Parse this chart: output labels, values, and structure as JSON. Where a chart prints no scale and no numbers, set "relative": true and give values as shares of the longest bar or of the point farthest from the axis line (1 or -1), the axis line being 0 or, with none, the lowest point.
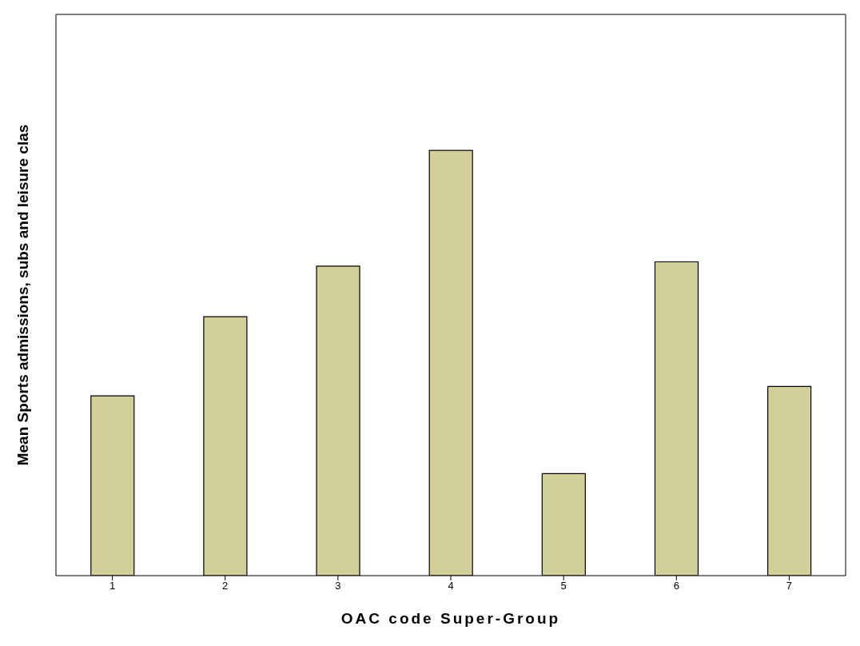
{
  "chart_data": {
    "type": "bar",
    "relative": true,
    "xlabel": "OAC code Super-Group",
    "ylabel": "Mean Sports admissions, subs and leisure clas",
    "categories": [
      "1",
      "2",
      "3",
      "4",
      "5",
      "6",
      "7"
    ],
    "values": [
      0.423,
      0.609,
      0.728,
      1,
      0.24,
      0.738,
      0.445
    ],
    "color": "#d3cf99",
    "grid": false,
    "legend": false
  }
}
